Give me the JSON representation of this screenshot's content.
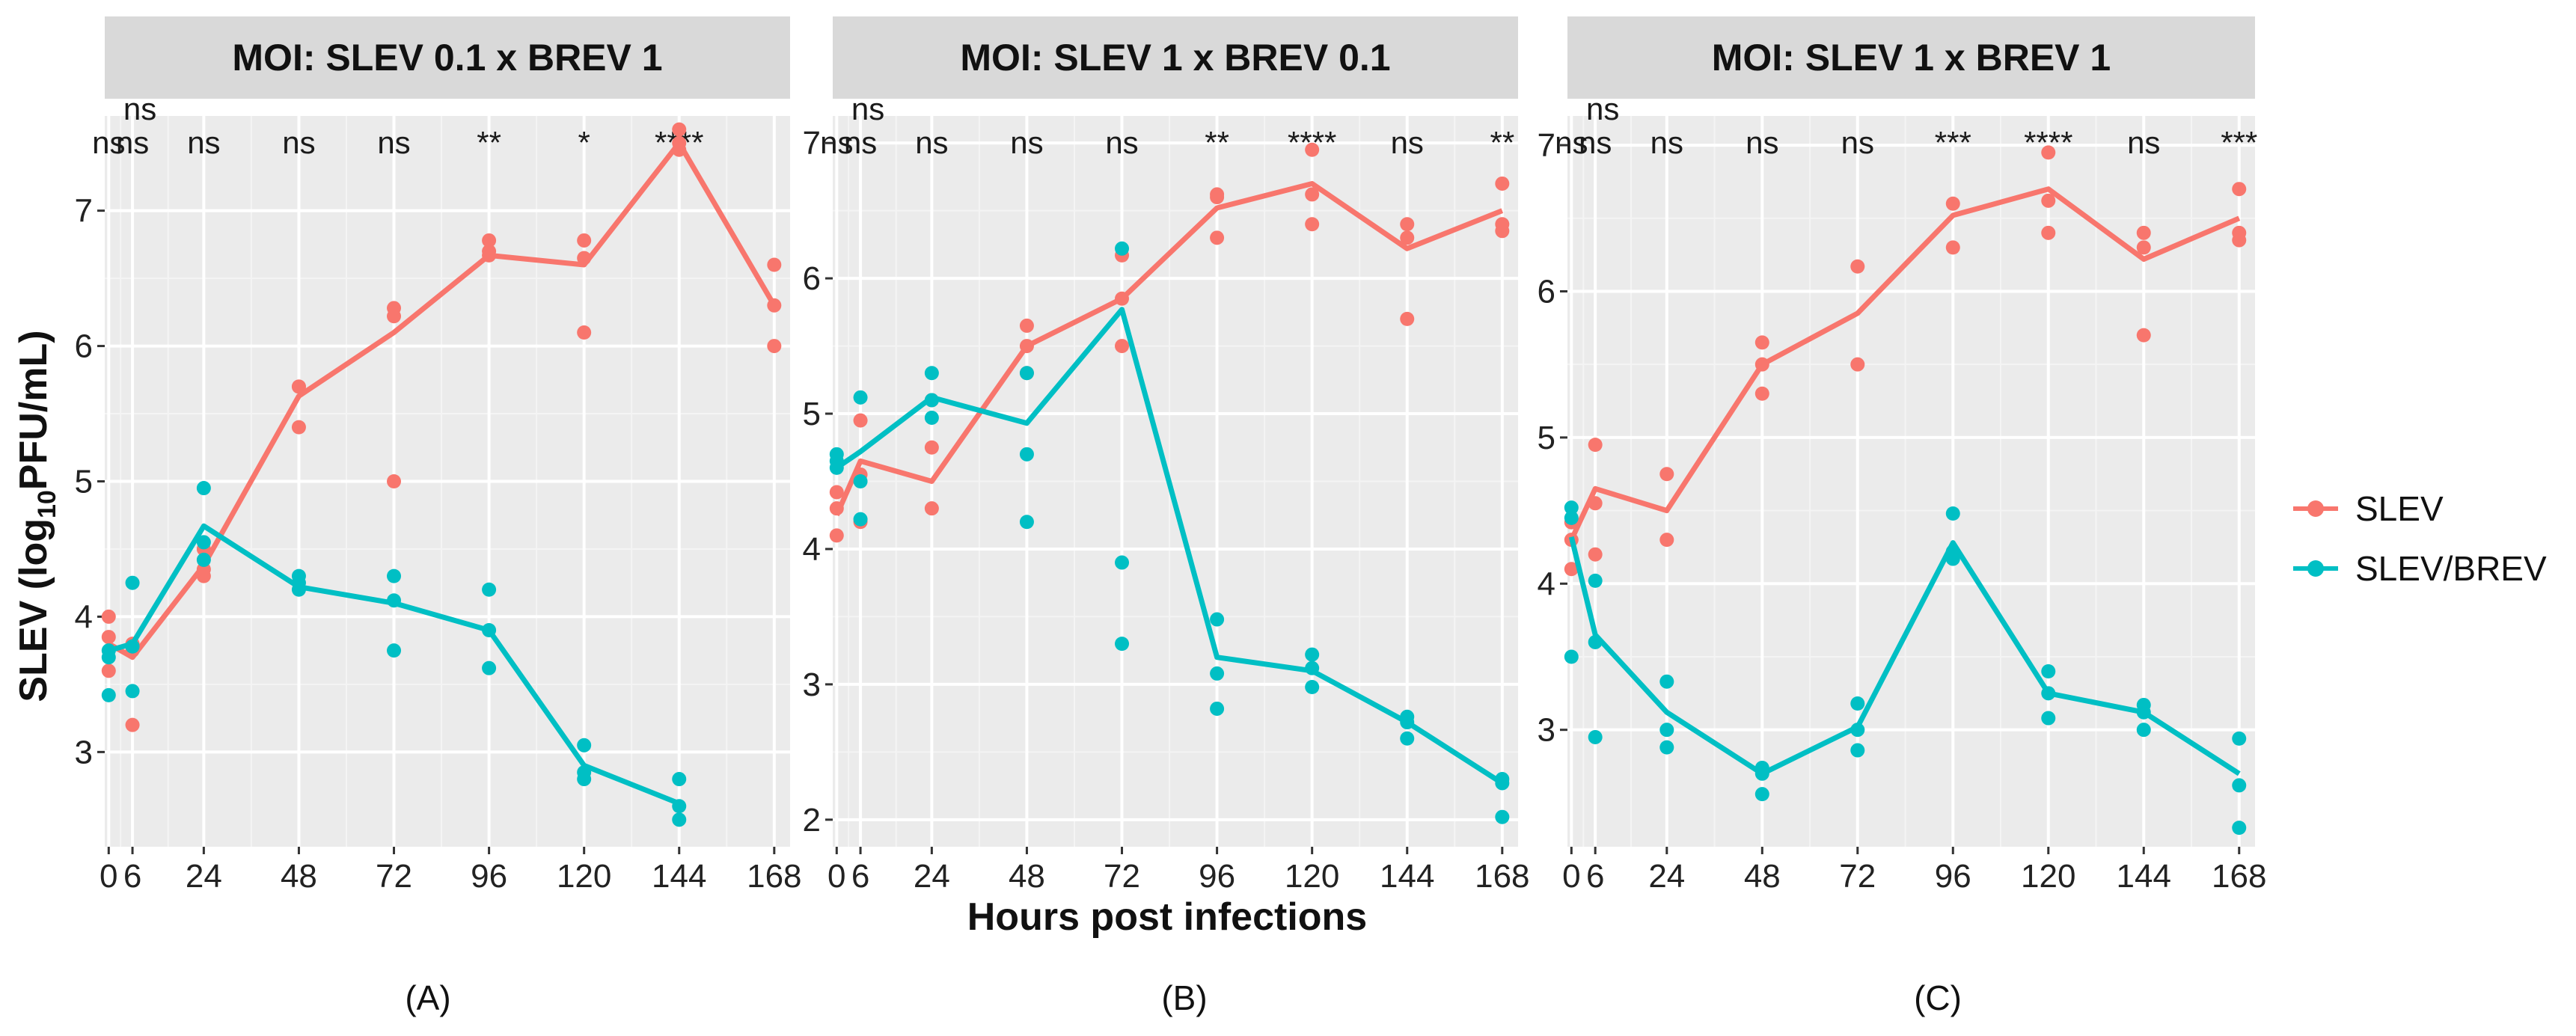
{
  "figure": {
    "ylabel": "SLEV (log",
    "ylabel_sub": "10",
    "ylabel_end": "PFU/mL)",
    "xlabel": "Hours post infections",
    "legend": [
      {
        "name": "SLEV",
        "color": "#F8766D"
      },
      {
        "name": "SLEV/BREV",
        "color": "#00BFC4"
      }
    ]
  },
  "chart_data": [
    {
      "type": "line",
      "title": "MOI: SLEV 0.1 x BREV 1",
      "caption": "(A)",
      "x": [
        0,
        6,
        24,
        48,
        72,
        96,
        120,
        144,
        168
      ],
      "xticks": [
        "0",
        "6",
        "24",
        "48",
        "72",
        "96",
        "120",
        "144",
        "168"
      ],
      "ylim": [
        2.3,
        7.7
      ],
      "yticks": [
        3,
        4,
        5,
        6,
        7
      ],
      "significance": [
        "ns",
        "ns",
        "ns",
        "ns",
        "ns",
        "**",
        "*",
        "****",
        ""
      ],
      "significance_red": [
        false,
        false,
        false,
        false,
        false,
        false,
        false,
        true,
        false
      ],
      "series": [
        {
          "name": "SLEV",
          "color": "#F8766D",
          "x": [
            0,
            6,
            24,
            48,
            72,
            96,
            120,
            144,
            168
          ],
          "mean": [
            3.8,
            3.7,
            4.38,
            5.63,
            6.1,
            6.67,
            6.6,
            7.5,
            6.3
          ],
          "points": [
            [
              0,
              4.0
            ],
            [
              0,
              3.6
            ],
            [
              0,
              3.85
            ],
            [
              6,
              3.2
            ],
            [
              6,
              3.75
            ],
            [
              6,
              3.8
            ],
            [
              24,
              4.3
            ],
            [
              24,
              4.35
            ],
            [
              24,
              4.5
            ],
            [
              48,
              5.4
            ],
            [
              48,
              5.7
            ],
            [
              48,
              5.7
            ],
            [
              72,
              5.0
            ],
            [
              72,
              6.22
            ],
            [
              72,
              6.28
            ],
            [
              96,
              6.67
            ],
            [
              96,
              6.7
            ],
            [
              96,
              6.78
            ],
            [
              120,
              6.1
            ],
            [
              120,
              6.65
            ],
            [
              120,
              6.78
            ],
            [
              144,
              7.45
            ],
            [
              144,
              7.6
            ],
            [
              144,
              7.5
            ],
            [
              168,
              6.0
            ],
            [
              168,
              6.3
            ],
            [
              168,
              6.6
            ]
          ]
        },
        {
          "name": "SLEV/BREV",
          "color": "#00BFC4",
          "x": [
            0,
            6,
            24,
            48,
            72,
            96,
            120,
            144
          ],
          "mean": [
            3.75,
            3.8,
            4.67,
            4.22,
            4.1,
            3.9,
            2.9,
            2.62
          ],
          "points": [
            [
              0,
              3.42
            ],
            [
              0,
              3.7
            ],
            [
              0,
              3.75
            ],
            [
              6,
              3.45
            ],
            [
              6,
              3.78
            ],
            [
              6,
              4.25
            ],
            [
              24,
              4.42
            ],
            [
              24,
              4.55
            ],
            [
              24,
              4.95
            ],
            [
              48,
              4.2
            ],
            [
              48,
              4.25
            ],
            [
              48,
              4.3
            ],
            [
              72,
              3.75
            ],
            [
              72,
              4.12
            ],
            [
              72,
              4.3
            ],
            [
              96,
              3.62
            ],
            [
              96,
              3.9
            ],
            [
              96,
              4.2
            ],
            [
              120,
              2.8
            ],
            [
              120,
              2.85
            ],
            [
              120,
              3.05
            ],
            [
              144,
              2.5
            ],
            [
              144,
              2.6
            ],
            [
              144,
              2.8
            ]
          ]
        }
      ]
    },
    {
      "type": "line",
      "title": "MOI: SLEV 1 x BREV 0.1",
      "caption": "(B)",
      "x": [
        0,
        6,
        24,
        48,
        72,
        96,
        120,
        144,
        168
      ],
      "xticks": [
        "0",
        "6",
        "24",
        "48",
        "72",
        "96",
        "120",
        "144",
        "168"
      ],
      "ylim": [
        1.8,
        7.2
      ],
      "yticks": [
        2,
        3,
        4,
        5,
        6,
        7
      ],
      "significance": [
        "ns",
        "ns",
        "ns",
        "ns",
        "ns",
        "**",
        "****",
        "ns",
        "**"
      ],
      "significance_red": [
        false,
        false,
        false,
        false,
        false,
        false,
        true,
        false,
        false
      ],
      "series": [
        {
          "name": "SLEV",
          "color": "#F8766D",
          "x": [
            0,
            6,
            24,
            48,
            72,
            96,
            120,
            144,
            168
          ],
          "mean": [
            4.25,
            4.65,
            4.5,
            5.5,
            5.85,
            6.52,
            6.7,
            6.22,
            6.5
          ],
          "points": [
            [
              0,
              4.1
            ],
            [
              0,
              4.3
            ],
            [
              0,
              4.42
            ],
            [
              6,
              4.2
            ],
            [
              6,
              4.55
            ],
            [
              6,
              4.95
            ],
            [
              24,
              4.3
            ],
            [
              24,
              4.75
            ],
            [
              24,
              5.1
            ],
            [
              48,
              5.3
            ],
            [
              48,
              5.5
            ],
            [
              48,
              5.65
            ],
            [
              72,
              5.5
            ],
            [
              72,
              6.17
            ],
            [
              72,
              5.85
            ],
            [
              96,
              6.3
            ],
            [
              96,
              6.62
            ],
            [
              96,
              6.6
            ],
            [
              120,
              6.4
            ],
            [
              120,
              6.62
            ],
            [
              120,
              6.95
            ],
            [
              144,
              5.7
            ],
            [
              144,
              6.3
            ],
            [
              144,
              6.4
            ],
            [
              168,
              6.35
            ],
            [
              168,
              6.4
            ],
            [
              168,
              6.7
            ]
          ]
        },
        {
          "name": "SLEV/BREV",
          "color": "#00BFC4",
          "x": [
            0,
            6,
            24,
            48,
            72,
            96,
            120,
            144,
            168
          ],
          "mean": [
            4.6,
            4.72,
            5.12,
            4.93,
            5.77,
            3.2,
            3.1,
            2.72,
            2.27
          ],
          "points": [
            [
              0,
              4.6
            ],
            [
              0,
              4.65
            ],
            [
              0,
              4.7
            ],
            [
              6,
              4.22
            ],
            [
              6,
              4.5
            ],
            [
              6,
              5.12
            ],
            [
              24,
              4.97
            ],
            [
              24,
              5.1
            ],
            [
              24,
              5.3
            ],
            [
              48,
              4.2
            ],
            [
              48,
              4.7
            ],
            [
              48,
              5.3
            ],
            [
              72,
              3.3
            ],
            [
              72,
              3.9
            ],
            [
              72,
              6.22
            ],
            [
              96,
              2.82
            ],
            [
              96,
              3.08
            ],
            [
              96,
              3.48
            ],
            [
              120,
              2.98
            ],
            [
              120,
              3.12
            ],
            [
              120,
              3.22
            ],
            [
              144,
              2.6
            ],
            [
              144,
              2.72
            ],
            [
              144,
              2.76
            ],
            [
              168,
              2.02
            ],
            [
              168,
              2.27
            ],
            [
              168,
              2.3
            ]
          ]
        }
      ]
    },
    {
      "type": "line",
      "title": "MOI: SLEV 1 x BREV 1",
      "caption": "(C)",
      "x": [
        0,
        6,
        24,
        48,
        72,
        96,
        120,
        144,
        168
      ],
      "xticks": [
        "0",
        "6",
        "24",
        "48",
        "72",
        "96",
        "120",
        "144",
        "168"
      ],
      "ylim": [
        2.2,
        7.2
      ],
      "yticks": [
        3,
        4,
        5,
        6,
        7
      ],
      "significance": [
        "ns",
        "ns",
        "ns",
        "ns",
        "ns",
        "***",
        "****",
        "ns",
        "***"
      ],
      "significance_red": [
        false,
        false,
        false,
        false,
        false,
        false,
        true,
        false,
        false
      ],
      "series": [
        {
          "name": "SLEV",
          "color": "#F8766D",
          "x": [
            0,
            6,
            24,
            48,
            72,
            96,
            120,
            144,
            168
          ],
          "mean": [
            4.3,
            4.65,
            4.5,
            5.5,
            5.85,
            6.52,
            6.7,
            6.22,
            6.5
          ],
          "points": [
            [
              0,
              4.1
            ],
            [
              0,
              4.3
            ],
            [
              0,
              4.42
            ],
            [
              6,
              4.2
            ],
            [
              6,
              4.55
            ],
            [
              6,
              4.95
            ],
            [
              24,
              4.3
            ],
            [
              24,
              4.75
            ],
            [
              48,
              5.3
            ],
            [
              48,
              5.5
            ],
            [
              48,
              5.65
            ],
            [
              72,
              5.5
            ],
            [
              72,
              6.17
            ],
            [
              96,
              6.3
            ],
            [
              96,
              6.6
            ],
            [
              120,
              6.4
            ],
            [
              120,
              6.62
            ],
            [
              120,
              6.95
            ],
            [
              144,
              5.7
            ],
            [
              144,
              6.3
            ],
            [
              144,
              6.4
            ],
            [
              168,
              6.35
            ],
            [
              168,
              6.4
            ],
            [
              168,
              6.7
            ]
          ]
        },
        {
          "name": "SLEV/BREV",
          "color": "#00BFC4",
          "x": [
            0,
            6,
            24,
            48,
            72,
            96,
            120,
            144,
            168
          ],
          "mean": [
            4.32,
            3.65,
            3.12,
            2.7,
            3.02,
            4.28,
            3.25,
            3.12,
            2.7
          ],
          "points": [
            [
              0,
              3.5
            ],
            [
              0,
              4.45
            ],
            [
              0,
              4.52
            ],
            [
              6,
              2.95
            ],
            [
              6,
              3.6
            ],
            [
              6,
              4.02
            ],
            [
              24,
              2.88
            ],
            [
              24,
              3.0
            ],
            [
              24,
              3.33
            ],
            [
              48,
              2.56
            ],
            [
              48,
              2.7
            ],
            [
              48,
              2.74
            ],
            [
              72,
              2.86
            ],
            [
              72,
              3.0
            ],
            [
              72,
              3.18
            ],
            [
              96,
              4.17
            ],
            [
              96,
              4.22
            ],
            [
              96,
              4.48
            ],
            [
              120,
              3.08
            ],
            [
              120,
              3.25
            ],
            [
              120,
              3.4
            ],
            [
              144,
              3.0
            ],
            [
              144,
              3.12
            ],
            [
              144,
              3.17
            ],
            [
              168,
              2.33
            ],
            [
              168,
              2.62
            ],
            [
              168,
              2.94
            ]
          ]
        }
      ]
    }
  ]
}
